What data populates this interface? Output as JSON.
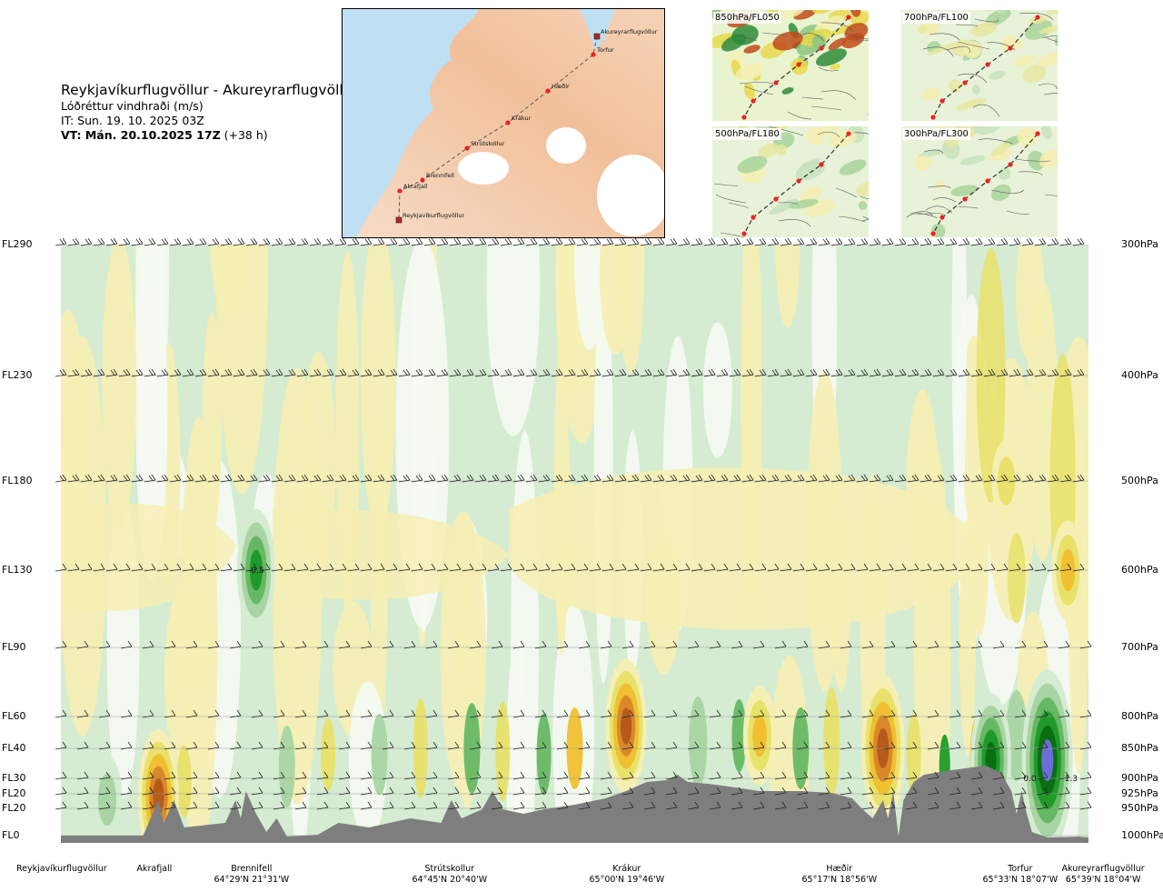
{
  "header": {
    "title": "Reykjavíkurflugvöllur - Akureyrarflugvöllur",
    "subtitle": "Lóðréttur vindhraði (m/s)",
    "it_line": "IT: Sun. 19. 10. 2025 03Z",
    "vt_bold": "VT: Mán. 20.10.2025 17Z",
    "vt_offset": " (+38 h)"
  },
  "map": {
    "route_points": [
      "Akureyrarflugvöllur",
      "Torfur",
      "Hæðir",
      "Krákur",
      "Strútskollur",
      "Brennifell",
      "Akrafjall",
      "Reykjavíkurflugvöllur"
    ]
  },
  "thumbnails": [
    {
      "label": "850hPa/FL050"
    },
    {
      "label": "700hPa/FL100"
    },
    {
      "label": "500hPa/FL180"
    },
    {
      "label": "300hPa/FL300"
    }
  ],
  "chart_data": {
    "type": "heatmap",
    "variable": "Lóðréttur vindhraði (m/s)",
    "levels_left": [
      "FL290",
      "FL230",
      "FL180",
      "FL130",
      "FL90",
      "FL60",
      "FL40",
      "FL30",
      "FL20",
      "FL20",
      "FL0"
    ],
    "levels_right": [
      "300hPa",
      "400hPa",
      "500hPa",
      "600hPa",
      "700hPa",
      "800hPa",
      "850hPa",
      "900hPa",
      "925hPa",
      "950hPa",
      "1000hPa"
    ],
    "pressure_hpa": [
      300,
      400,
      500,
      600,
      700,
      800,
      850,
      900,
      925,
      950,
      1000
    ],
    "x_locations": [
      {
        "name": "Reykjavíkurflugvöllur",
        "coord": "",
        "dist": 0.0
      },
      {
        "name": "Akrafjall",
        "coord": "",
        "dist": 0.095
      },
      {
        "name": "Brennifell",
        "coord": "64°29'N 21°31'W",
        "dist": 0.186
      },
      {
        "name": "Strútskollur",
        "coord": "64°45'N 20°40'W",
        "dist": 0.378
      },
      {
        "name": "Krákur",
        "coord": "65°00'N 19°46'W",
        "dist": 0.575
      },
      {
        "name": "Hæðir",
        "coord": "65°17'N 18°56'W",
        "dist": 0.762
      },
      {
        "name": "Torfur",
        "coord": "65°33'N 18°07'W",
        "dist": 0.945
      },
      {
        "name": "Akureyrarflugvöllur",
        "coord": "65°39'N 18°04'W",
        "dist": 0.99
      }
    ],
    "annotations": [
      {
        "text": "-0.5",
        "dist": 0.19,
        "pressure": 600
      },
      {
        "text": "0.0",
        "dist": 0.943,
        "pressure": 900
      },
      {
        "text": "1.3",
        "dist": 0.983,
        "pressure": 900
      }
    ],
    "features": [
      {
        "dist": 0.19,
        "pressure": 600,
        "value": -0.5
      },
      {
        "dist": 0.095,
        "pressure": 930,
        "value": 0.6
      },
      {
        "dist": 0.045,
        "pressure": 935,
        "value": -0.2
      },
      {
        "dist": 0.55,
        "pressure": 815,
        "value": 0.6
      },
      {
        "dist": 0.8,
        "pressure": 850,
        "value": 0.7
      },
      {
        "dist": 0.68,
        "pressure": 830,
        "value": 0.3
      },
      {
        "dist": 0.96,
        "pressure": 870,
        "value": -1.0
      },
      {
        "dist": 0.905,
        "pressure": 870,
        "value": -0.6
      },
      {
        "dist": 0.98,
        "pressure": 600,
        "value": 0.3
      },
      {
        "dist": 0.92,
        "pressure": 500,
        "value": 0.15
      }
    ],
    "legend": "none",
    "grid": true
  },
  "colors": {
    "strong_down": "#7a3b00",
    "down_4": "#b55a1a",
    "down_3": "#d9882a",
    "down_2": "#f0c030",
    "down_1": "#e8e26a",
    "weak_down": "#f6efb4",
    "neutral": "#f4faf2",
    "weak_up": "#d5ecd2",
    "up_1": "#a8d5a3",
    "up_2": "#66b864",
    "up_3": "#1f9a2a",
    "up_4": "#0b6e12",
    "strong_up": "#6b6ed8",
    "terrain": "#7e7e7e"
  }
}
